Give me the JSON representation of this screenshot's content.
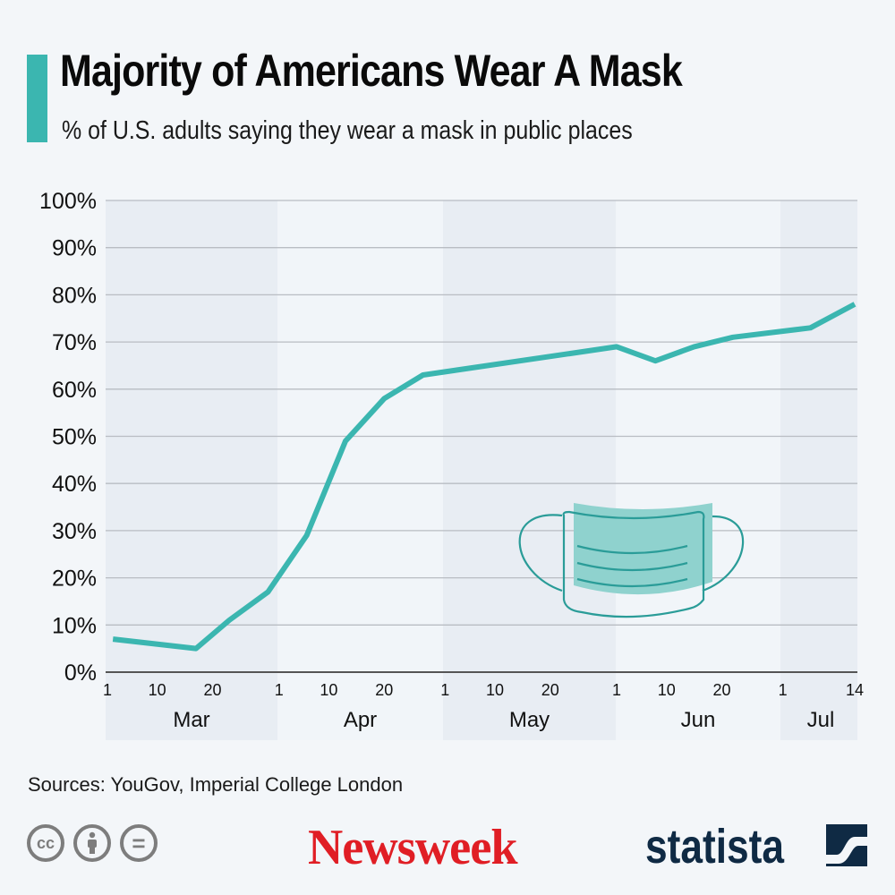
{
  "header": {
    "title": "Majority of Americans Wear A Mask",
    "subtitle": "% of U.S. adults saying they wear a mask in public places",
    "accent_color": "#3bb6b0"
  },
  "chart_data": {
    "type": "line",
    "title": "Majority of Americans Wear A Mask",
    "subtitle": "% of U.S. adults saying they wear a mask in public places",
    "xlabel": "",
    "ylabel": "",
    "ylim": [
      0,
      100
    ],
    "y_ticks": [
      "0%",
      "10%",
      "20%",
      "30%",
      "40%",
      "50%",
      "60%",
      "70%",
      "80%",
      "90%",
      "100%"
    ],
    "grid": true,
    "x_range": [
      "2020-03-01",
      "2020-07-14"
    ],
    "months": [
      {
        "label": "Mar",
        "ticks": [
          "1",
          "10",
          "20"
        ],
        "shaded": true
      },
      {
        "label": "Apr",
        "ticks": [
          "1",
          "10",
          "20"
        ],
        "shaded": false
      },
      {
        "label": "May",
        "ticks": [
          "1",
          "10",
          "20"
        ],
        "shaded": true
      },
      {
        "label": "Jun",
        "ticks": [
          "1",
          "10",
          "20"
        ],
        "shaded": false
      },
      {
        "label": "Jul",
        "ticks": [
          "1",
          "14"
        ],
        "shaded": true
      }
    ],
    "series": [
      {
        "name": "Wear a mask in public places",
        "color": "#3bb6b0",
        "points": [
          {
            "date": "Mar 2",
            "day": 1,
            "value": 7
          },
          {
            "date": "Mar 17",
            "day": 16,
            "value": 5
          },
          {
            "date": "Mar 23",
            "day": 22,
            "value": 11
          },
          {
            "date": "Mar 30",
            "day": 29,
            "value": 17
          },
          {
            "date": "Apr 6",
            "day": 36,
            "value": 29
          },
          {
            "date": "Apr 13",
            "day": 43,
            "value": 49
          },
          {
            "date": "Apr 20",
            "day": 50,
            "value": 58
          },
          {
            "date": "Apr 27",
            "day": 57,
            "value": 63
          },
          {
            "date": "Jun 1",
            "day": 92,
            "value": 69
          },
          {
            "date": "Jun 8",
            "day": 99,
            "value": 66
          },
          {
            "date": "Jun 15",
            "day": 106,
            "value": 69
          },
          {
            "date": "Jun 22",
            "day": 113,
            "value": 71
          },
          {
            "date": "Jul 6",
            "day": 127,
            "value": 73
          },
          {
            "date": "Jul 14",
            "day": 135,
            "value": 78
          }
        ]
      }
    ],
    "illustration": "face-mask"
  },
  "footer": {
    "sources": "Sources: YouGov, Imperial College London",
    "license_icons": [
      "cc-icon",
      "attribution-icon",
      "no-derivatives-icon"
    ],
    "cc_label": "cc",
    "nd_label": "=",
    "newsweek_logo": "Newsweek",
    "newsweek_color": "#e01e25",
    "statista_logo": "statista",
    "statista_color": "#0f2a44"
  }
}
